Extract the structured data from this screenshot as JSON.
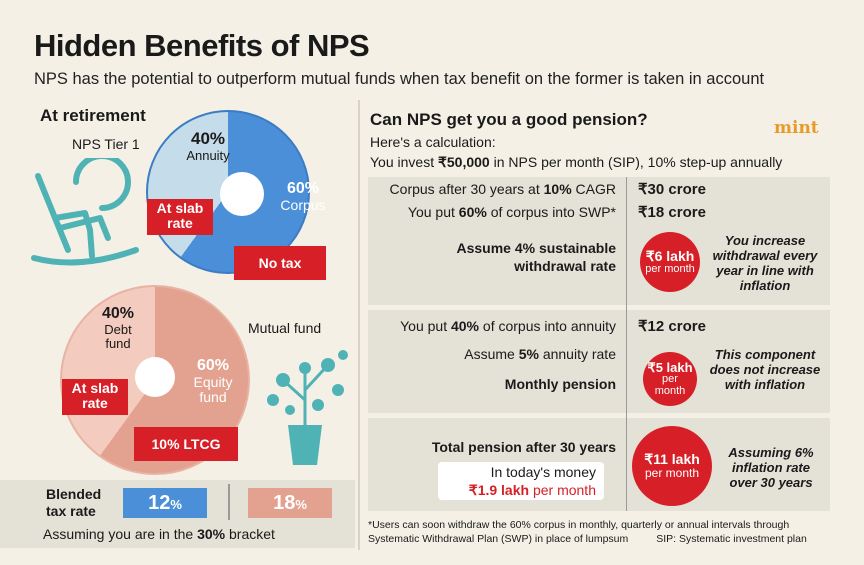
{
  "title": "Hidden Benefits of NPS",
  "subtitle": "NPS has the potential to outperform mutual funds when tax benefit on the former is taken in account",
  "left": {
    "heading": "At retirement",
    "nps": {
      "label": "NPS Tier 1",
      "annuity_pct": "40%",
      "annuity_label": "Annuity",
      "corpus_pct": "60%",
      "corpus_label": "Corpus",
      "annuity_tax": [
        "At slab",
        "rate"
      ],
      "corpus_tax": "No tax",
      "colors": {
        "corpus": "#4a8fd8",
        "annuity": "#c5dcea"
      }
    },
    "mf": {
      "label": "Mutual fund",
      "debt_pct": "40%",
      "debt_label": [
        "Debt",
        "fund"
      ],
      "equity_pct": "60%",
      "equity_label": [
        "Equity",
        "fund"
      ],
      "debt_tax": [
        "At slab",
        "rate"
      ],
      "equity_tax": "10% LTCG",
      "colors": {
        "equity": "#e3a190",
        "debt": "#f4cbbf"
      }
    },
    "blended": {
      "label": [
        "Blended",
        "tax rate"
      ],
      "nps": "12",
      "mf": "18",
      "unit": "%",
      "note_pre": "Assuming you are in the ",
      "note_bold": "30%",
      "note_post": " bracket"
    }
  },
  "right": {
    "heading": "Can NPS get you a good pension?",
    "brand": "mint",
    "intro": "Here's a calculation:",
    "invest_pre": "You invest ",
    "invest_bold": "₹50,000",
    "invest_post": " in NPS per month (SIP), 10% step-up annually",
    "rows": [
      {
        "pre": "Corpus after 30 years at ",
        "bold": "10%",
        "post": " CAGR",
        "value": "₹30 crore"
      },
      {
        "pre": "You put ",
        "bold": "60%",
        "post": " of corpus into SWP*",
        "value": "₹18 crore"
      },
      {
        "pre": "You put ",
        "bold": "40%",
        "post": " of corpus into annuity",
        "value": "₹12 crore"
      },
      {
        "pre": "Assume ",
        "bold": "5%",
        "post": " annuity rate"
      }
    ],
    "swp": {
      "label": [
        "Assume 4% sustainable",
        "withdrawal rate"
      ],
      "amount": "₹6 lakh",
      "per": "per month",
      "note": "You increase withdrawal every year in line with inflation"
    },
    "annuity": {
      "label": "Monthly pension",
      "amount": "₹5 lakh",
      "per": [
        "per",
        "month"
      ],
      "note": "This component does not increase with inflation"
    },
    "total": {
      "label": "Total pension after 30 years",
      "today": "In today's money",
      "today_amount": "₹1.9 lakh",
      "today_per": " per month",
      "amount": "₹11 lakh",
      "per": "per month",
      "note": "Assuming 6% inflation rate over 30 years"
    },
    "footnote": "*Users can soon withdraw the 60% corpus in monthly, quarterly or annual intervals through",
    "footnote2": "Systematic Withdrawal Plan (SWP) in place of lumpsum",
    "sip_note": "SIP: Systematic investment plan"
  }
}
